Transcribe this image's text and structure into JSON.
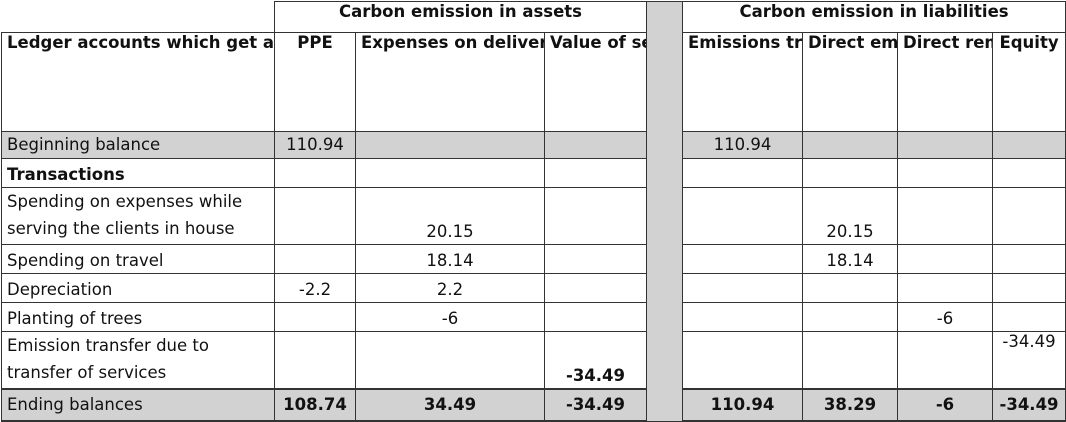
{
  "group_headers": {
    "assets": "Carbon emission in assets",
    "liabilities": "Carbon emission in liabilities"
  },
  "columns": {
    "ledger": "Ledger accounts which get affected in carbon accounting",
    "ppe": "PPE",
    "expenses": "Expenses on delivering the serves (electricity, travel, depreciation)",
    "value_services": "Value of services to be delivered",
    "emissions_transferred": "Emissions transferred in",
    "direct_emissions": "Direct emissions",
    "direct_removal": "Direct removal",
    "equity": "Equity"
  },
  "rows": {
    "beginning": {
      "label": "Beginning balance",
      "ppe": "110.94",
      "emissions_transferred": "110.94"
    },
    "transactions": {
      "label": "Transactions"
    },
    "spending_clients": {
      "label_line1": "Spending on expenses while",
      "label_line2": "serving the clients in house",
      "expenses": "20.15",
      "direct_emissions": "20.15"
    },
    "travel": {
      "label": "Spending on travel",
      "expenses": "18.14",
      "direct_emissions": "18.14"
    },
    "depreciation": {
      "label": "Depreciation",
      "ppe": "-2.2",
      "expenses": "2.2"
    },
    "planting": {
      "label": "Planting of trees",
      "expenses": "-6",
      "direct_removal": "-6"
    },
    "emission_transfer": {
      "label_line1": "Emission transfer due to",
      "label_line2": "transfer of services",
      "value_services": "-34.49",
      "equity": "-34.49"
    },
    "ending": {
      "label": "Ending balances",
      "ppe": "108.74",
      "expenses": "34.49",
      "value_services": "-34.49",
      "emissions_transferred": "110.94",
      "direct_emissions": "38.29",
      "direct_removal": "-6",
      "equity": "-34.49"
    }
  }
}
